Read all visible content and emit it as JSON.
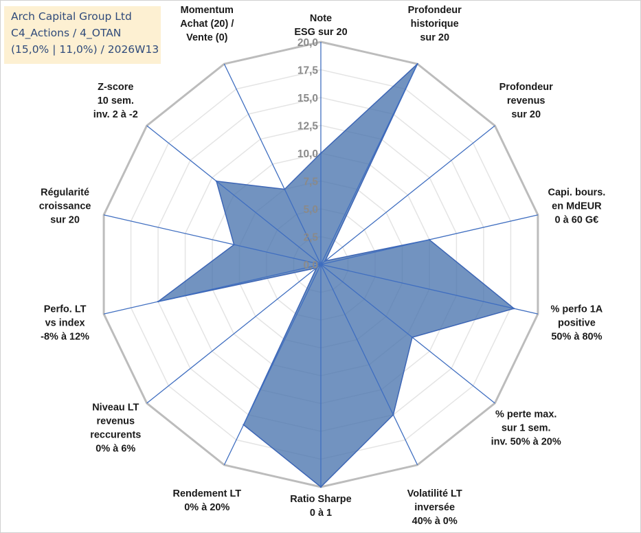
{
  "header": {
    "line1": "Arch Capital Group Ltd",
    "line2": "C4_Actions / 4_OTAN",
    "line3": "(15,0% | 11,0%) / 2026W13"
  },
  "chart_data": {
    "type": "radar",
    "title": "Arch Capital Group Ltd",
    "rmin": 0,
    "rmax": 20,
    "tick_step": 2.5,
    "tick_labels": [
      "0,0",
      "2,5",
      "5,0",
      "7,5",
      "10,0",
      "12,5",
      "15,0",
      "17,5",
      "20,0"
    ],
    "axes": [
      {
        "label": [
          "Note",
          "ESG sur 20"
        ],
        "value": 10.0
      },
      {
        "label": [
          "Profondeur",
          "historique",
          "sur 20"
        ],
        "value": 20.0
      },
      {
        "label": [
          "Profondeur",
          "revenus",
          "sur 20"
        ],
        "value": 0.5
      },
      {
        "label": [
          "Capi. bours.",
          "en MdEUR",
          "0 à 60 G€"
        ],
        "value": 10.0
      },
      {
        "label": [
          "% perfo 1A",
          "positive",
          "50% à 80%"
        ],
        "value": 17.8
      },
      {
        "label": [
          "% perte max.",
          "sur 1 sem.",
          "inv. 50% à 20%"
        ],
        "value": 10.5
      },
      {
        "label": [
          "Volatilité LT",
          "inversée",
          "40% à 0%"
        ],
        "value": 15.0
      },
      {
        "label": [
          "Ratio Sharpe",
          "0 à 1"
        ],
        "value": 20.0
      },
      {
        "label": [
          "Rendement LT",
          "0% à 20%"
        ],
        "value": 16.0
      },
      {
        "label": [
          "Niveau LT",
          "revenus",
          "reccurents",
          "0% à 6%"
        ],
        "value": 0.5
      },
      {
        "label": [
          "Perfo. LT",
          "vs index",
          "-8% à 12%"
        ],
        "value": 15.0
      },
      {
        "label": [
          "Régularité",
          "croissance",
          "sur 20"
        ],
        "value": 8.0
      },
      {
        "label": [
          "Z-score",
          "10 sem.",
          "inv. 2 à -2"
        ],
        "value": 12.0
      },
      {
        "label": [
          "Momentum",
          "Achat (20) /",
          "Vente (0)"
        ],
        "value": 7.5
      }
    ],
    "colors": {
      "fill": "#4a74ae",
      "stroke": "#3c65b5",
      "spoke": "#3f6ec0",
      "outer_grid": "#bcbcbc",
      "inner_grid": "#e4e4e4"
    }
  }
}
